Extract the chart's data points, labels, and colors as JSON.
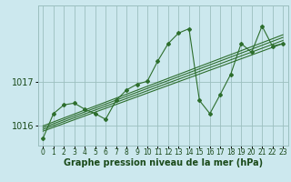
{
  "title": "",
  "xlabel": "Graphe pression niveau de la mer (hPa)",
  "background_color": "#cce8ee",
  "grid_color": "#9bbfbf",
  "line_color": "#2d6e2d",
  "marker_color": "#2d6e2d",
  "text_color": "#1a4a1a",
  "ylim": [
    1015.55,
    1018.75
  ],
  "xlim": [
    -0.5,
    23.5
  ],
  "yticks": [
    1016,
    1017
  ],
  "xticks": [
    0,
    1,
    2,
    3,
    4,
    5,
    6,
    7,
    8,
    9,
    10,
    11,
    12,
    13,
    14,
    15,
    16,
    17,
    18,
    19,
    20,
    21,
    22,
    23
  ],
  "main_series": [
    1015.72,
    1016.28,
    1016.48,
    1016.52,
    1016.38,
    1016.28,
    1016.15,
    1016.58,
    1016.82,
    1016.95,
    1017.02,
    1017.48,
    1017.88,
    1018.12,
    1018.22,
    1016.58,
    1016.28,
    1016.72,
    1017.18,
    1017.88,
    1017.68,
    1018.28,
    1017.82,
    1017.88
  ],
  "trend_lines": [
    {
      "x0": 0,
      "y0": 1015.88,
      "x1": 23,
      "y1": 1017.88
    },
    {
      "x0": 0,
      "y0": 1015.92,
      "x1": 23,
      "y1": 1017.95
    },
    {
      "x0": 0,
      "y0": 1015.96,
      "x1": 23,
      "y1": 1018.02
    },
    {
      "x0": 0,
      "y0": 1016.0,
      "x1": 23,
      "y1": 1018.08
    }
  ],
  "fontsize_xlabel": 7,
  "fontsize_ytick": 7,
  "fontsize_xtick": 5.5
}
